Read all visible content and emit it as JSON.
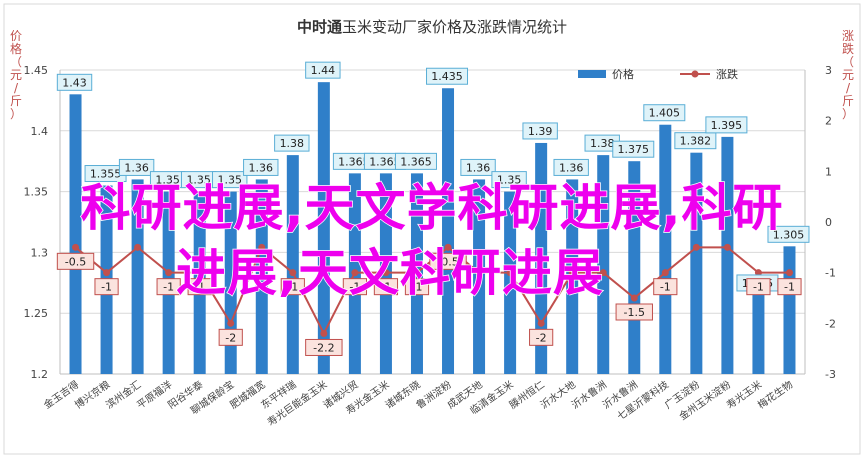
{
  "chart_data": {
    "type": "bar+line",
    "title_bold": "中时通",
    "title_rest": "玉米变动厂家价格及涨跌情况统计",
    "ylabel_left": "价格（元/斤）",
    "ylabel_right": "涨跌（元/斤）",
    "ylim_left": [
      1.2,
      1.45
    ],
    "yticks_left": [
      "1.2",
      "1.25",
      "1.3",
      "1.35",
      "1.4",
      "1.45"
    ],
    "ylim_right": [
      -3,
      3
    ],
    "yticks_right": [
      "-3",
      "-2",
      "-1",
      "0",
      "1",
      "2",
      "3"
    ],
    "legend": {
      "bar": "价格",
      "line": "涨跌",
      "position": "top-right"
    },
    "categories": [
      "金玉吉得",
      "博兴京粮",
      "滨州金汇",
      "平原福洋",
      "阳谷华泰",
      "聊城保龄宝",
      "肥城福宽",
      "东平祥瑞",
      "寿光巨能金玉米",
      "诸城兴贸",
      "寿光金玉米",
      "诸城东晓",
      "鲁洲淀粉",
      "成武天地",
      "临清金玉米",
      "滕州恒仁",
      "沂水大地",
      "沂水鲁洲",
      "沂水鲁洲",
      "七星沂蒙科技",
      "广玉淀粉",
      "金州玉米淀粉",
      "寿光玉米",
      "梅花生物"
    ],
    "price": [
      1.43,
      1.355,
      1.36,
      1.35,
      1.35,
      1.35,
      1.36,
      1.38,
      1.44,
      1.365,
      1.365,
      1.365,
      1.435,
      1.36,
      1.35,
      1.39,
      1.36,
      1.38,
      1.375,
      1.405,
      1.382,
      1.395,
      1.265,
      1.305
    ],
    "price_labels": [
      "1.43",
      "1.355",
      "1.36",
      "1.35",
      "1.35",
      "1.35",
      "1.36",
      "1.38",
      "1.44",
      "1.365",
      "1.365",
      "1.365",
      "1.435",
      "1.36",
      "1.35",
      "1.39",
      "1.36",
      "1.38",
      "1.375",
      "1.405",
      "1.382",
      "1.395",
      "1.265",
      "1.305"
    ],
    "change": [
      -0.5,
      -1,
      -0.5,
      -1,
      -1,
      -2,
      -0.5,
      -1,
      -2.2,
      -1,
      -1,
      -1,
      -0.5,
      -1,
      -1,
      -2,
      -1,
      -1,
      -1.5,
      -1,
      -0.5,
      -0.5,
      -1,
      -1
    ],
    "change_labels": [
      "-0.5",
      "-1",
      "",
      "-1",
      "-1",
      "-2",
      "",
      "-1",
      "-2.2",
      "-1",
      "-1",
      "-1",
      "-0.5",
      "",
      "",
      "-2",
      "",
      "",
      "-1.5",
      "-1",
      "",
      "",
      "-1",
      "-1"
    ],
    "colors": {
      "bar": "#2f7fc9",
      "line": "#c0504d",
      "price_label_bg": "#dff3f9",
      "price_label_border": "#5aaed6",
      "change_label_bg": "#fbe3de",
      "change_label_border": "#c0504d"
    }
  },
  "overlay": {
    "line1": "科研进展,天文学科研进展,科研",
    "line2": "进展,天文科研进展"
  },
  "colors": {
    "overlay": "#ee00ee"
  }
}
